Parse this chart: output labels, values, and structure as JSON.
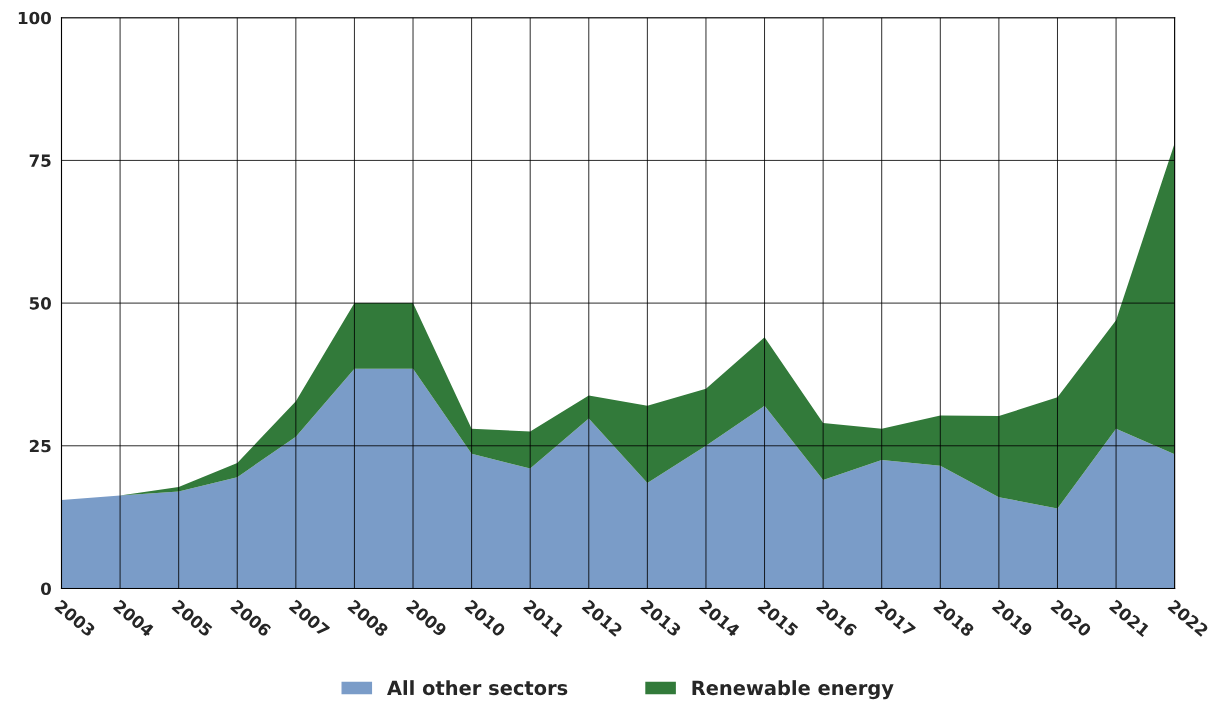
{
  "chart_data": {
    "type": "area",
    "stacked": true,
    "categories": [
      "2003",
      "2004",
      "2005",
      "2006",
      "2007",
      "2008",
      "2009",
      "2010",
      "2011",
      "2012",
      "2013",
      "2014",
      "2015",
      "2016",
      "2017",
      "2018",
      "2019",
      "2020",
      "2021",
      "2022"
    ],
    "series": [
      {
        "name": "All other sectors",
        "color": "#7a9cc8",
        "values": [
          15.5,
          16.3,
          17,
          19.5,
          26.6,
          38.5,
          38.5,
          23.6,
          21,
          29.8,
          18.5,
          25,
          32,
          19,
          22.5,
          21.5,
          16,
          14,
          28,
          23.5
        ]
      },
      {
        "name": "Renewable energy",
        "color": "#327a3a",
        "values": [
          0,
          0,
          0.8,
          2.5,
          6.2,
          11.5,
          11.5,
          4.4,
          6.5,
          4,
          13.5,
          10,
          12,
          10,
          5.5,
          8.8,
          14.2,
          19.5,
          19,
          54.5
        ]
      }
    ],
    "ylim": [
      0,
      100
    ],
    "yticks": [
      0,
      25,
      50,
      75,
      100
    ],
    "grid": true,
    "legend": "bottom"
  }
}
